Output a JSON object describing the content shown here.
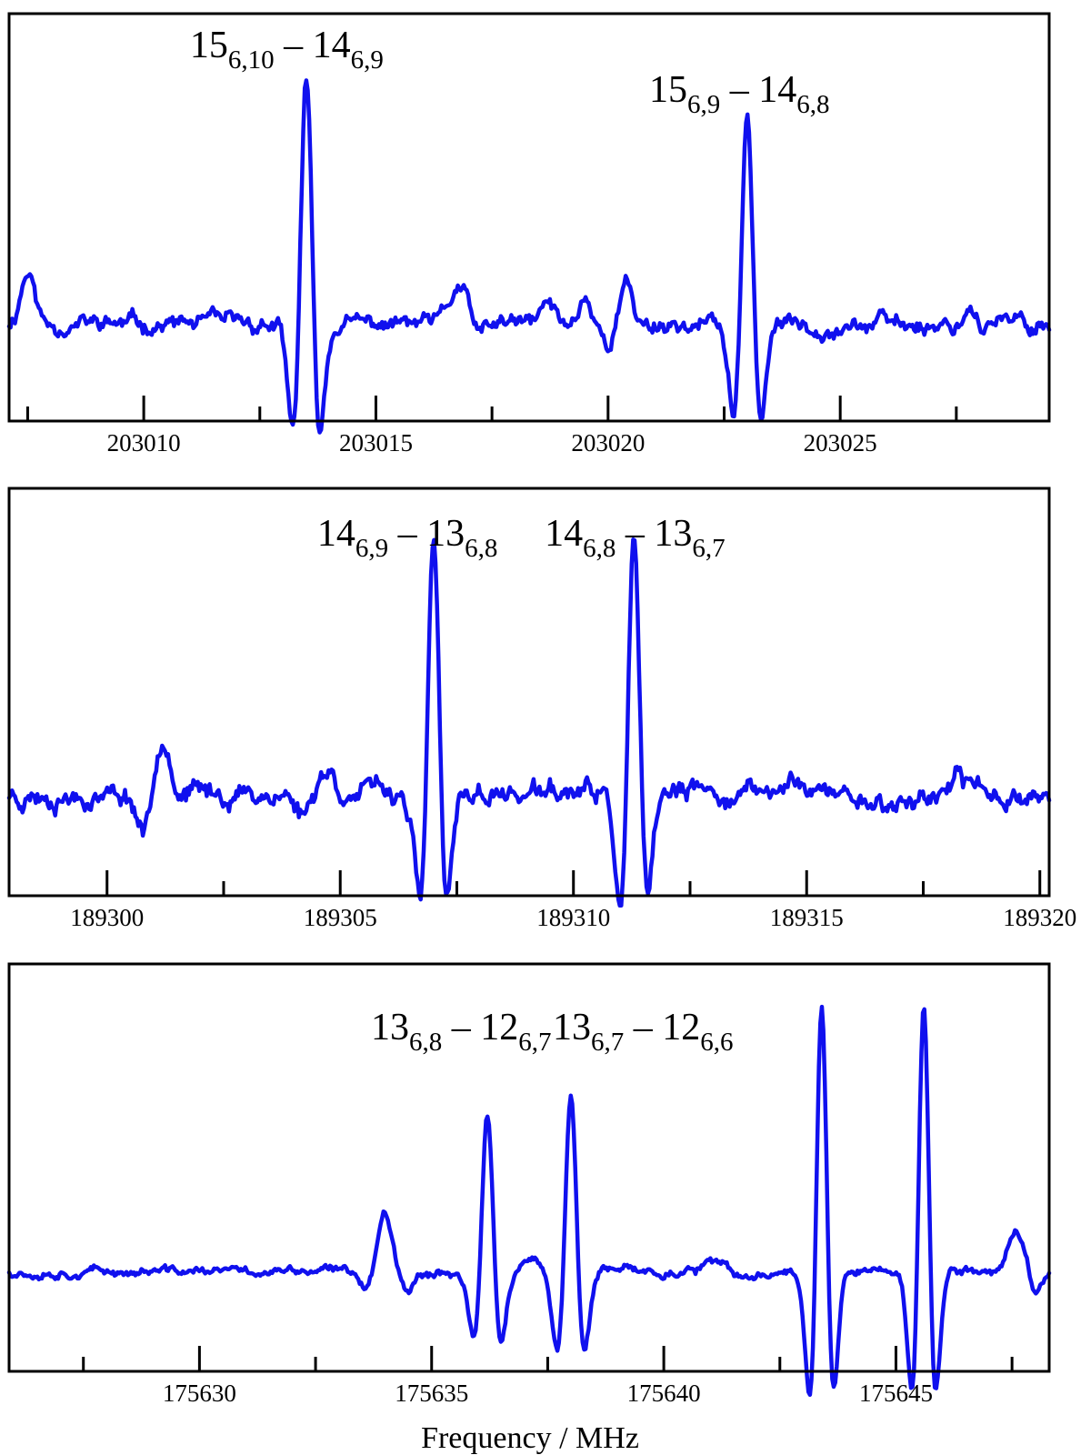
{
  "chart_data": [
    {
      "type": "line",
      "title": "",
      "xlabel": "",
      "ylabel": "",
      "xlim": [
        203007.1,
        203029.5
      ],
      "ylim": [
        -1.0,
        3.2
      ],
      "grid": false,
      "xticks_major": [
        203010,
        203015,
        203020,
        203025
      ],
      "x_tick_labels": [
        "203010",
        "203015",
        "203020",
        "203025"
      ],
      "xticks_minor": [
        203007.5,
        203012.5,
        203017.5,
        203022.5,
        203027.5
      ],
      "annotations": [
        {
          "base": "15",
          "sub": "6,10",
          "dash": "–",
          "base2": "14",
          "sub2": "6,9",
          "x": 203013.5
        },
        {
          "base": "15",
          "sub": "6,9",
          "dash": "–",
          "base2": "14",
          "sub2": "6,8",
          "x": 203023.0
        }
      ],
      "series": [
        {
          "color": "#1010ee",
          "baseline": 0.0,
          "noise": 0.1,
          "seed": 11,
          "wiggles": [
            {
              "x": 203007.5,
              "a": 0.55,
              "w": 0.15
            },
            {
              "x": 203016.8,
              "a": 0.38,
              "w": 0.2
            },
            {
              "x": 203018.7,
              "a": 0.22,
              "w": 0.13
            },
            {
              "x": 203019.5,
              "a": 0.3,
              "w": 0.12
            },
            {
              "x": 203020.4,
              "a": 0.4,
              "w": 0.13
            },
            {
              "x": 203017.2,
              "a": -0.15,
              "w": 0.15
            },
            {
              "x": 203020.0,
              "a": -0.2,
              "w": 0.1
            },
            {
              "x": 203027.8,
              "a": 0.2,
              "w": 0.12
            }
          ],
          "lines": [
            {
              "x": 203013.5,
              "a": 2.5,
              "w": 0.17
            },
            {
              "x": 203023.0,
              "a": 2.1,
              "w": 0.17
            }
          ]
        }
      ]
    },
    {
      "type": "line",
      "title": "",
      "xlabel": "",
      "ylabel": "",
      "xlim": [
        189297.9,
        189320.2
      ],
      "ylim": [
        -1.0,
        3.0
      ],
      "grid": false,
      "xticks_major": [
        189300,
        189305,
        189310,
        189315,
        189320
      ],
      "x_tick_labels": [
        "189300",
        "189305",
        "189310",
        "189315",
        "189320"
      ],
      "xticks_minor": [
        189302.5,
        189307.5,
        189312.5,
        189317.5
      ],
      "annotations": [
        {
          "base": "14",
          "sub": "6,9",
          "dash": "–",
          "base2": "13",
          "sub2": "6,8",
          "x": 189307.0
        },
        {
          "base": "14",
          "sub": "6,8",
          "dash": "–",
          "base2": "13",
          "sub2": "6,7",
          "x": 189311.1
        }
      ],
      "series": [
        {
          "color": "#1010ee",
          "baseline": 0.0,
          "noise": 0.12,
          "seed": 23,
          "wiggles": [
            {
              "x": 189301.2,
              "a": 0.62,
              "w": 0.16
            },
            {
              "x": 189300.8,
              "a": -0.35,
              "w": 0.15
            },
            {
              "x": 189304.7,
              "a": 0.25,
              "w": 0.18
            },
            {
              "x": 189304.2,
              "a": -0.2,
              "w": 0.15
            },
            {
              "x": 189314.8,
              "a": 0.18,
              "w": 0.2
            },
            {
              "x": 189316.8,
              "a": -0.1,
              "w": 0.4
            },
            {
              "x": 189318.5,
              "a": 0.1,
              "w": 0.3
            }
          ],
          "lines": [
            {
              "x": 189307.0,
              "a": 2.45,
              "w": 0.17
            },
            {
              "x": 189311.3,
              "a": 2.45,
              "w": 0.17
            }
          ]
        }
      ]
    },
    {
      "type": "line",
      "title": "",
      "xlabel": "Frequency / MHz",
      "ylabel": "",
      "xlim": [
        175625.9,
        175648.3
      ],
      "ylim": [
        -1.2,
        3.7
      ],
      "grid": false,
      "xticks_major": [
        175630,
        175635,
        175640,
        175645
      ],
      "x_tick_labels": [
        "175630",
        "175635",
        "175640",
        "175645"
      ],
      "xticks_minor": [
        175627.5,
        175632.5,
        175637.5,
        175642.5,
        175647.5
      ],
      "annotations": [
        {
          "base": "13",
          "sub": "6,8",
          "dash": "–",
          "base2": "12",
          "sub2": "6,7",
          "x": 175636.2
        },
        {
          "base": "13",
          "sub": "6,7",
          "dash": "–",
          "base2": "12",
          "sub2": "6,6",
          "x": 175638.0
        }
      ],
      "series": [
        {
          "color": "#1010ee",
          "baseline": 0.0,
          "noise": 0.06,
          "seed": 37,
          "wiggles": [
            {
              "x": 175634.0,
              "a": 0.7,
              "w": 0.15
            },
            {
              "x": 175633.6,
              "a": -0.2,
              "w": 0.1
            },
            {
              "x": 175634.5,
              "a": -0.2,
              "w": 0.12
            },
            {
              "x": 175637.1,
              "a": 0.1,
              "w": 0.18
            },
            {
              "x": 175641.0,
              "a": 0.1,
              "w": 0.2
            },
            {
              "x": 175641.8,
              "a": -0.1,
              "w": 0.2
            },
            {
              "x": 175647.6,
              "a": 0.45,
              "w": 0.2
            },
            {
              "x": 175648.0,
              "a": -0.3,
              "w": 0.12
            }
          ],
          "lines": [
            {
              "x": 175636.2,
              "a": 1.85,
              "w": 0.17
            },
            {
              "x": 175638.0,
              "a": 2.1,
              "w": 0.17
            },
            {
              "x": 175643.4,
              "a": 3.2,
              "w": 0.15
            },
            {
              "x": 175645.6,
              "a": 3.2,
              "w": 0.15
            }
          ]
        }
      ]
    }
  ]
}
